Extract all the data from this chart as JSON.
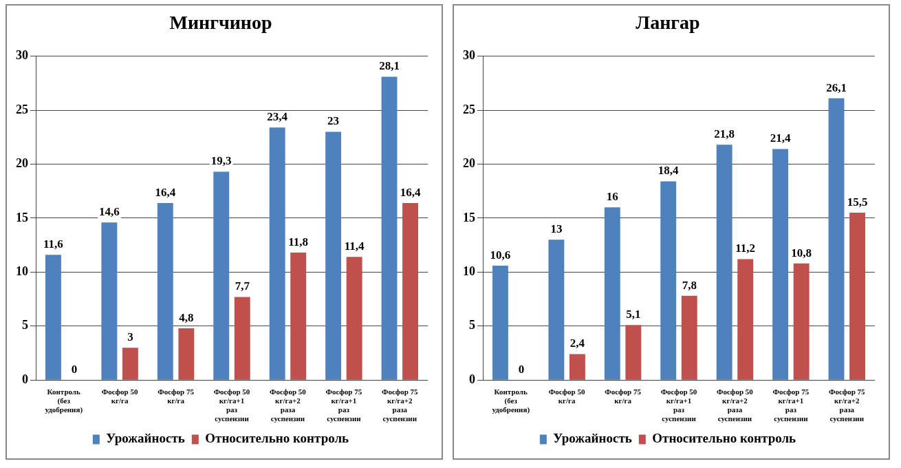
{
  "chart_data": [
    {
      "type": "bar",
      "title": "Мингчинор",
      "categories": [
        "Контроль (без удобрения)",
        "Фосфор 50 кг/га",
        "Фосфор 75 кг/га",
        "Фосфор 50 кг/га+1 раз суспензии",
        "Фосфор 50 кг/га+2 раза суспензии",
        "Фосфор 75 кг/га+1 раз суспензии",
        "Фосфор 75 кг/га+2 раза суспензии"
      ],
      "series": [
        {
          "name": "Урожайность",
          "color": "#4f81bd",
          "values": [
            11.6,
            14.6,
            16.4,
            19.3,
            23.4,
            23,
            28.1
          ],
          "value_labels": [
            "11,6",
            "14,6",
            "16,4",
            "19,3",
            "23,4",
            "23",
            "28,1"
          ]
        },
        {
          "name": "Относительно контроль",
          "color": "#c0504d",
          "values": [
            0,
            3,
            4.8,
            7.7,
            11.8,
            11.4,
            16.4
          ],
          "value_labels": [
            "0",
            "3",
            "4,8",
            "7,7",
            "11,8",
            "11,4",
            "16,4"
          ]
        }
      ],
      "ylim": [
        0,
        30
      ],
      "yticks": [
        0,
        5,
        10,
        15,
        20,
        25,
        30
      ],
      "grid": "y",
      "legend": "bottom"
    },
    {
      "type": "bar",
      "title": "Лангар",
      "categories": [
        "Контроль (без удобрения)",
        "Фосфор 50 кг/га",
        "Фосфор 75 кг/га",
        "Фосфор 50 кг/га+1 раз суспензии",
        "Фосфор 50 кг/га+2 раза суспензии",
        "Фосфор 75 кг/га+1 раз суспензии",
        "Фосфор 75 кг/га+2 раза суспензии"
      ],
      "series": [
        {
          "name": "Урожайность",
          "color": "#4f81bd",
          "values": [
            10.6,
            13,
            16,
            18.4,
            21.8,
            21.4,
            26.1
          ],
          "value_labels": [
            "10,6",
            "13",
            "16",
            "18,4",
            "21,8",
            "21,4",
            "26,1"
          ]
        },
        {
          "name": "Относительно контроль",
          "color": "#c0504d",
          "values": [
            0,
            2.4,
            5.1,
            7.8,
            11.2,
            10.8,
            15.5
          ],
          "value_labels": [
            "0",
            "2,4",
            "5,1",
            "7,8",
            "11,2",
            "10,8",
            "15,5"
          ]
        }
      ],
      "ylim": [
        0,
        30
      ],
      "yticks": [
        0,
        5,
        10,
        15,
        20,
        25,
        30
      ],
      "grid": "y",
      "legend": "bottom"
    }
  ]
}
